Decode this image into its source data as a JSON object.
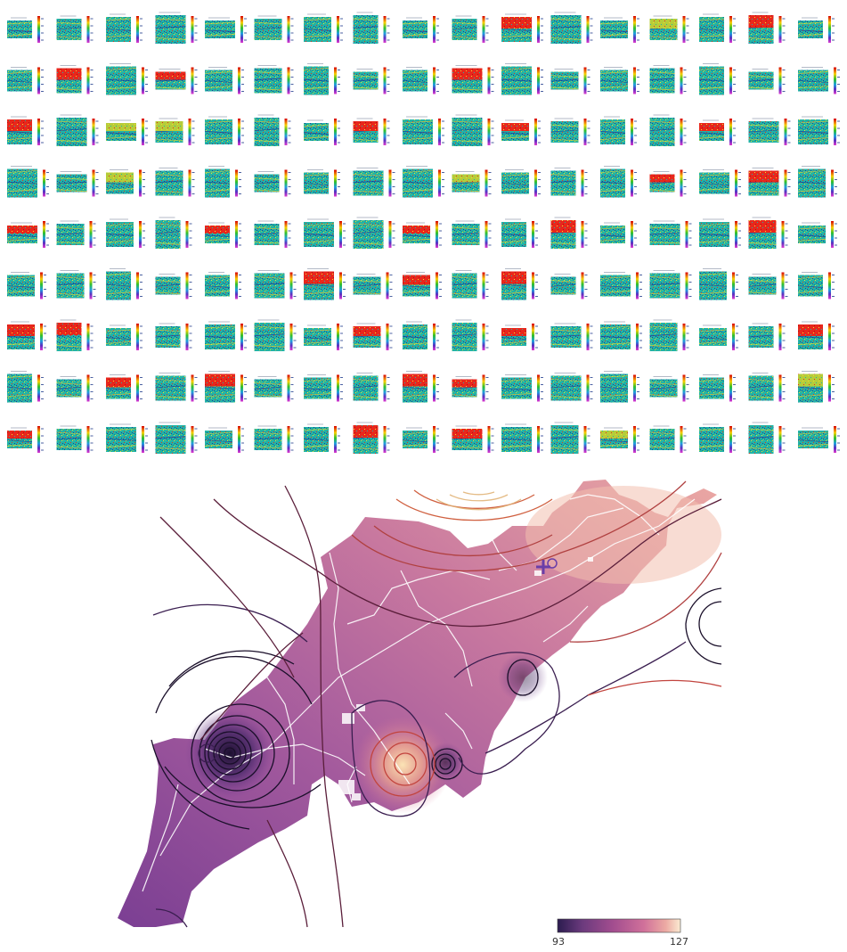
{
  "thumbnail_grid": {
    "rows": 9,
    "cols": 17,
    "base_color": "#22b3a6",
    "accent_colors": [
      "#e8271c",
      "#f2dd2a",
      "#1c2a9a",
      "#b6cc3a"
    ],
    "colorbar_colors": [
      "#d80000",
      "#f7d000",
      "#2ec02e",
      "#1ea0e0",
      "#5a2fc0",
      "#e03ad0"
    ],
    "scale_label_color": "#1f3a8a",
    "highlight_tiles": [
      [
        0,
        10,
        "red"
      ],
      [
        0,
        13,
        "yellow"
      ],
      [
        0,
        15,
        "red"
      ],
      [
        1,
        1,
        "red"
      ],
      [
        1,
        3,
        "red"
      ],
      [
        1,
        9,
        "red"
      ],
      [
        2,
        0,
        "red"
      ],
      [
        2,
        2,
        "yellow"
      ],
      [
        2,
        3,
        "yellow"
      ],
      [
        2,
        7,
        "red"
      ],
      [
        2,
        10,
        "red"
      ],
      [
        2,
        14,
        "red"
      ],
      [
        3,
        2,
        "yellow"
      ],
      [
        3,
        9,
        "yellow"
      ],
      [
        3,
        13,
        "red"
      ],
      [
        3,
        15,
        "red"
      ],
      [
        4,
        0,
        "red"
      ],
      [
        4,
        4,
        "red"
      ],
      [
        4,
        8,
        "red"
      ],
      [
        4,
        11,
        "red"
      ],
      [
        4,
        15,
        "red"
      ],
      [
        5,
        6,
        "red"
      ],
      [
        5,
        8,
        "red"
      ],
      [
        5,
        10,
        "red"
      ],
      [
        6,
        0,
        "red"
      ],
      [
        6,
        1,
        "red"
      ],
      [
        6,
        7,
        "red"
      ],
      [
        6,
        10,
        "red"
      ],
      [
        6,
        16,
        "red"
      ],
      [
        7,
        2,
        "red"
      ],
      [
        7,
        4,
        "red"
      ],
      [
        7,
        8,
        "red"
      ],
      [
        7,
        9,
        "red"
      ],
      [
        7,
        16,
        "yellow"
      ],
      [
        8,
        0,
        "red"
      ],
      [
        8,
        7,
        "red"
      ],
      [
        8,
        9,
        "red"
      ],
      [
        8,
        12,
        "yellow"
      ]
    ]
  },
  "map": {
    "colorbar": {
      "min": "93",
      "max": "127"
    },
    "colormap": [
      "#2b1c4f",
      "#6b3a7d",
      "#a24d8f",
      "#d0709a",
      "#ecaaa3",
      "#fbebd2"
    ],
    "fill_stops": [
      "#7b3f93",
      "#a35a9d",
      "#c8789f",
      "#eba8a3"
    ],
    "marker_color": "#6a3ea8",
    "hotspot_color": "#f7cf93",
    "lowspot_color": "#1c0f2f"
  }
}
